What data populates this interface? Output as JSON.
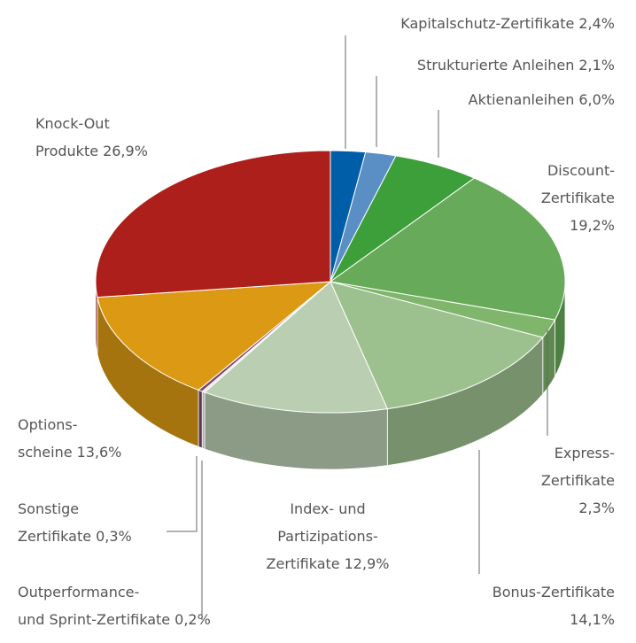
{
  "chart_data": {
    "type": "pie",
    "categories": [
      "Kapitalschutz-Zertifikate",
      "Strukturierte Anleihen",
      "Aktienanleihen",
      "Discount-\nZertifikate",
      "Express-\nZertifikate",
      "Bonus-Zertifikate",
      "Index- und\nPartizipations-\nZertifikate",
      "Outperformance-\nund Sprint-Zertifikate",
      "Sonstige\nZertifikate",
      "Options-\nscheine",
      "Knock-Out\nProdukte"
    ],
    "values": [
      2.4,
      2.1,
      6.0,
      19.2,
      2.3,
      14.1,
      12.9,
      0.2,
      0.3,
      13.6,
      26.9
    ],
    "value_labels": [
      "2,4%",
      "2,1%",
      "6,0%",
      "19,2%",
      "2,3%",
      "14,1%",
      "12,9%",
      "0,2%",
      "0,3%",
      "13,6%",
      "26,9%"
    ],
    "colors": [
      "#005ea8",
      "#5a8fc6",
      "#3d9f3a",
      "#67aa59",
      "#80b56c",
      "#9dc18e",
      "#bacfb2",
      "#ecdfe8",
      "#7a4a6c",
      "#dc9a14",
      "#ad1f1b"
    ]
  }
}
